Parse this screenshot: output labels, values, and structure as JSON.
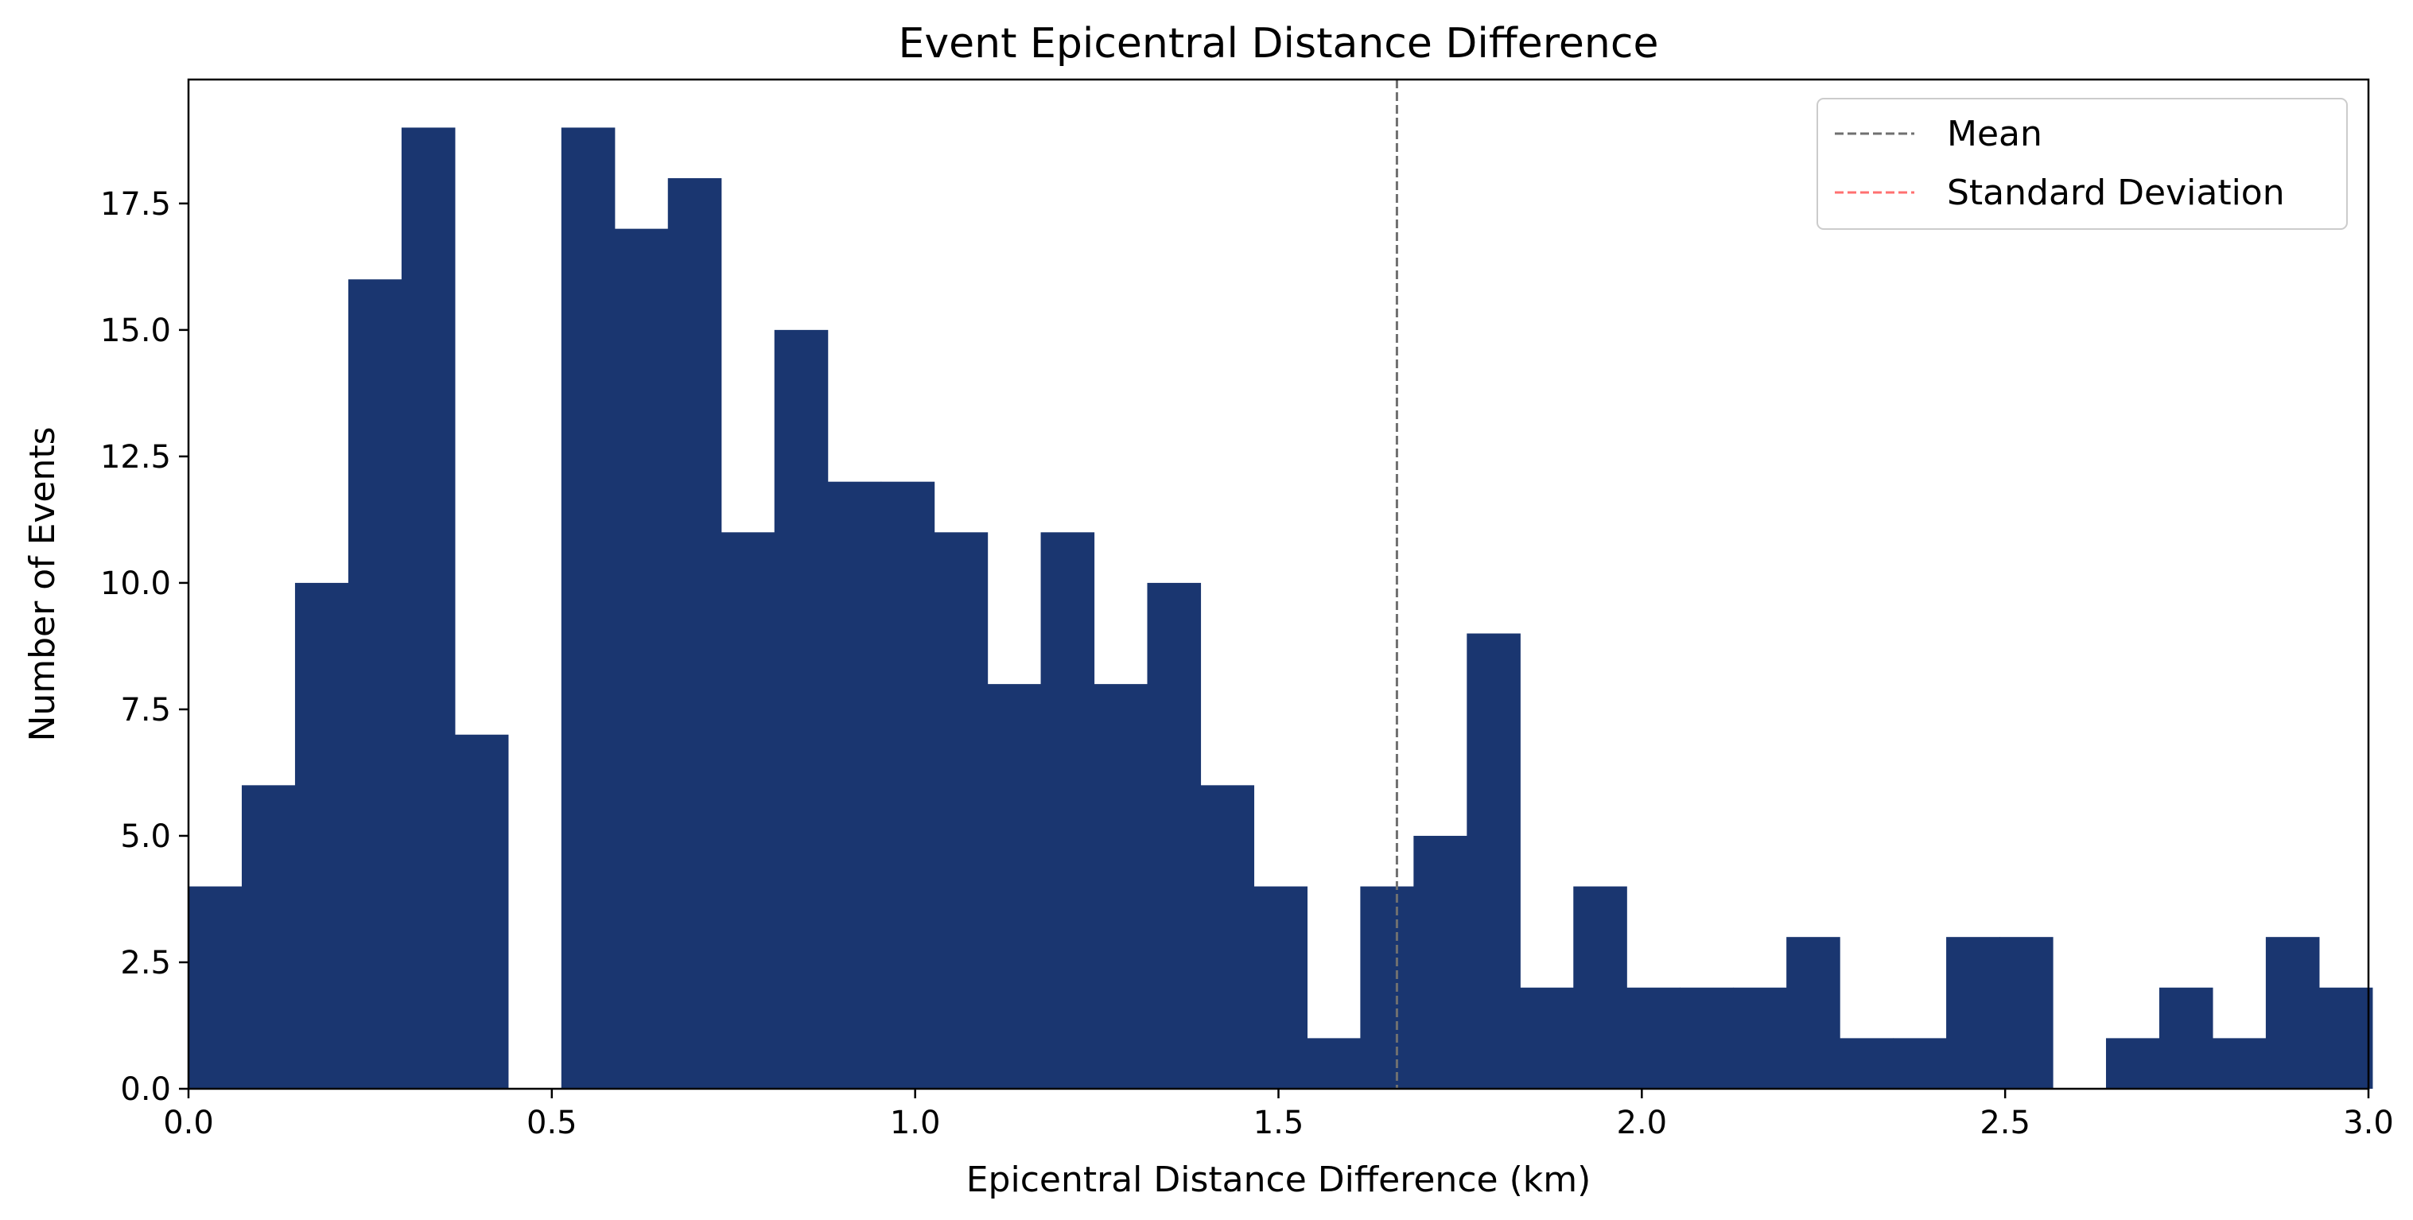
{
  "chart_data": {
    "type": "bar",
    "title": "Event Epicentral Distance Difference",
    "xlabel": "Epicentral Distance Difference (km)",
    "ylabel": "Number of Events",
    "xlim": [
      0,
      3.0
    ],
    "ylim": [
      0,
      19.95
    ],
    "bin_edges": [
      0,
      0.0733,
      0.1466,
      0.2199,
      0.2932,
      0.3665,
      0.4398,
      0.5131,
      0.5864,
      0.6597,
      0.733,
      0.8063,
      0.8796,
      0.9529,
      1.0262,
      1.0995,
      1.1728,
      1.2461,
      1.3194,
      1.3927,
      1.466,
      1.5393,
      1.6126,
      1.6859,
      1.7592,
      1.8325,
      1.9058,
      1.9791,
      2.0524,
      2.1257,
      2.199,
      2.2723,
      2.3456,
      2.4189,
      2.4922,
      2.5655,
      2.6388,
      2.7121,
      2.7854,
      2.8587,
      2.932
    ],
    "counts": [
      4,
      6,
      10,
      16,
      19,
      7,
      0,
      19,
      17,
      18,
      11,
      15,
      12,
      12,
      11,
      8,
      11,
      8,
      10,
      6,
      4,
      1,
      4,
      5,
      9,
      2,
      4,
      2,
      2,
      2,
      3,
      1,
      1,
      3,
      3,
      0,
      1,
      2,
      1,
      3,
      2
    ],
    "x_ticks": [
      "0.0",
      "0.5",
      "1.0",
      "1.5",
      "2.0",
      "2.5",
      "3.0"
    ],
    "x_tick_values": [
      0,
      0.5,
      1.0,
      1.5,
      2.0,
      2.5,
      3.0
    ],
    "y_ticks": [
      "0.0",
      "2.5",
      "5.0",
      "7.5",
      "10.0",
      "12.5",
      "15.0",
      "17.5"
    ],
    "y_tick_values": [
      0,
      2.5,
      5.0,
      7.5,
      10.0,
      12.5,
      15.0,
      17.5
    ],
    "mean_line": 1.663,
    "bar_color": "#1a3670",
    "mean_color": "#707070",
    "std_color": "#ff7070",
    "legend": {
      "position": "top-right",
      "entries": [
        {
          "label": "Mean",
          "color": "#707070"
        },
        {
          "label": "Standard Deviation",
          "color": "#ff7070"
        }
      ]
    },
    "grid": false
  }
}
